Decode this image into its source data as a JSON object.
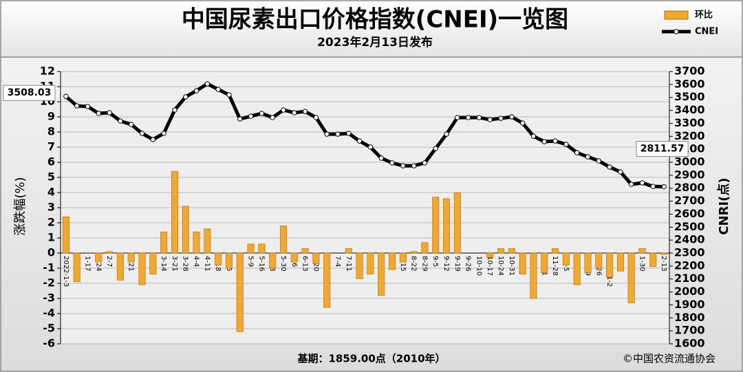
{
  "chart_data": {
    "type": "bar-line",
    "title": "中国尿素出口价格指数(CNEI)一览图",
    "subtitle": "2023年2月13日发布",
    "y_label": "涨跌幅(%)",
    "y2_label": "CNRI(点)",
    "footer_left": "基期：1859.00点（2010年）",
    "footer_right": "©中国农资流通协会",
    "categories": [
      "2022-1-3",
      "1-10",
      "1-17",
      "1-24",
      "2-7",
      "2-14",
      "2-21",
      "2-28",
      "3-7",
      "3-14",
      "3-21",
      "3-28",
      "4-4",
      "4-11",
      "4-18",
      "4-25",
      "5-2",
      "5-9",
      "5-16",
      "5-23",
      "5-30",
      "6-6",
      "6-13",
      "6-20",
      "6-27",
      "7-4",
      "7-11",
      "7-18",
      "7-25",
      "8-1",
      "8-8",
      "8-15",
      "8-22",
      "8-29",
      "9-5",
      "9-12",
      "9-19",
      "9-26",
      "10-10",
      "10-17",
      "10-24",
      "10-31",
      "11-7",
      "11-14",
      "11-21",
      "11-28",
      "12-5",
      "12-12",
      "12-19",
      "12-26",
      "2023-1-2",
      "1-9",
      "1-16",
      "1-30",
      "2-6",
      "2-13"
    ],
    "series": [
      {
        "name": "环比",
        "type": "bar",
        "color": "#f0a830",
        "values": [
          2.4,
          -1.9,
          0,
          -0.6,
          0.1,
          -1.8,
          -0.6,
          -2.1,
          -1.4,
          1.4,
          5.4,
          3.1,
          1.4,
          1.6,
          -0.8,
          -1.0,
          -5.2,
          0.6,
          0.6,
          -1.0,
          1.8,
          -0.6,
          0.3,
          -0.7,
          -3.6,
          0,
          0.3,
          -1.7,
          -1.4,
          -2.8,
          -1.1,
          -0.6,
          0.1,
          0.7,
          3.7,
          3.6,
          4.0,
          0,
          0,
          -0.3,
          0.3,
          0.3,
          -1.4,
          -3.0,
          -1.3,
          0.3,
          -0.8,
          -2.1,
          -1.3,
          -1.0,
          -1.6,
          -1.2,
          -3.3,
          0.3,
          -0.9,
          -0.1
        ]
      },
      {
        "name": "CNEI",
        "type": "line",
        "axis": "y2",
        "color": "#000000",
        "values": [
          3508.03,
          3435,
          3430,
          3377,
          3382,
          3318,
          3292,
          3223,
          3175,
          3223,
          3403,
          3504,
          3552,
          3605,
          3562,
          3520,
          3334,
          3355,
          3377,
          3345,
          3403,
          3382,
          3392,
          3345,
          3217,
          3217,
          3223,
          3164,
          3117,
          3032,
          2995,
          2973,
          2973,
          2995,
          3106,
          3217,
          3345,
          3345,
          3345,
          3329,
          3339,
          3350,
          3302,
          3201,
          3159,
          3164,
          3138,
          3074,
          3042,
          3011,
          2963,
          2926,
          2830,
          2841,
          2814,
          2811.57
        ],
        "value_labels": [
          "3508.03",
          null,
          null,
          null,
          null,
          null,
          null,
          null,
          null,
          null,
          null,
          null,
          null,
          null,
          null,
          null,
          null,
          null,
          null,
          null,
          null,
          null,
          null,
          null,
          null,
          null,
          null,
          null,
          null,
          null,
          null,
          null,
          null,
          null,
          null,
          null,
          null,
          null,
          null,
          null,
          null,
          null,
          null,
          null,
          null,
          null,
          null,
          null,
          null,
          null,
          null,
          null,
          null,
          null,
          null,
          "2811.57"
        ]
      }
    ],
    "ylim": [
      -6,
      12
    ],
    "yticks": [
      -6,
      -5,
      -4,
      -3,
      -2,
      -1,
      0,
      1,
      2,
      3,
      4,
      5,
      6,
      7,
      8,
      9,
      10,
      11,
      12
    ],
    "y2lim": [
      1600,
      3700
    ],
    "y2ticks": [
      1600,
      1700,
      1800,
      1900,
      2000,
      2100,
      2200,
      2300,
      2400,
      2500,
      2600,
      2700,
      2800,
      2900,
      3000,
      3100,
      3200,
      3300,
      3400,
      3500,
      3600,
      3700
    ],
    "grid": true
  }
}
